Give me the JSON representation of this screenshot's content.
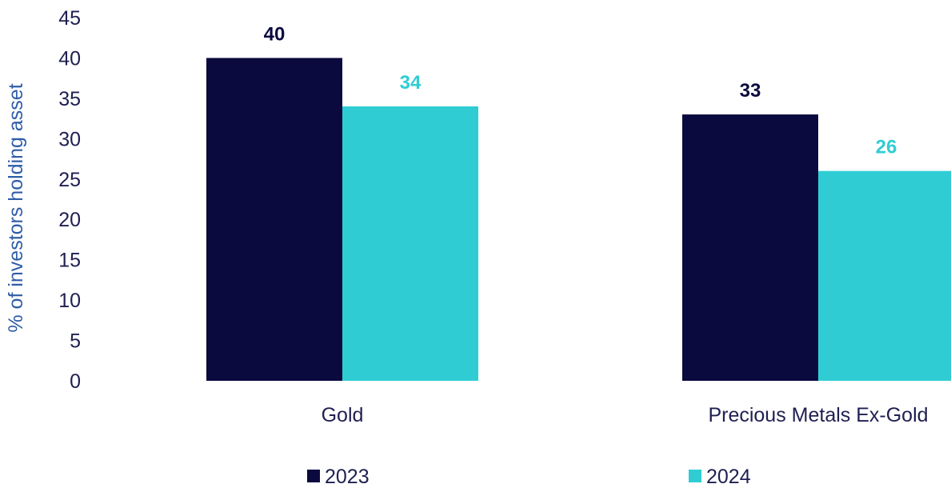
{
  "chart_data": {
    "type": "bar",
    "ylabel": "% of investors holding asset",
    "categories": [
      "Gold",
      "Precious Metals Ex-Gold"
    ],
    "yticks": [
      "0",
      "5",
      "10",
      "15",
      "20",
      "25",
      "30",
      "35",
      "40",
      "45"
    ],
    "ylim": [
      0,
      45
    ],
    "grid": false,
    "legend_position": "bottom",
    "series": [
      {
        "name": "2023",
        "values": [
          40,
          33
        ],
        "color": "#0b0a3e"
      },
      {
        "name": "2024",
        "values": [
          34,
          26
        ],
        "color": "#2fcdd3"
      }
    ]
  },
  "colors": {
    "axis_text": "#1f1f52",
    "ylabel": "#2f5da8"
  }
}
